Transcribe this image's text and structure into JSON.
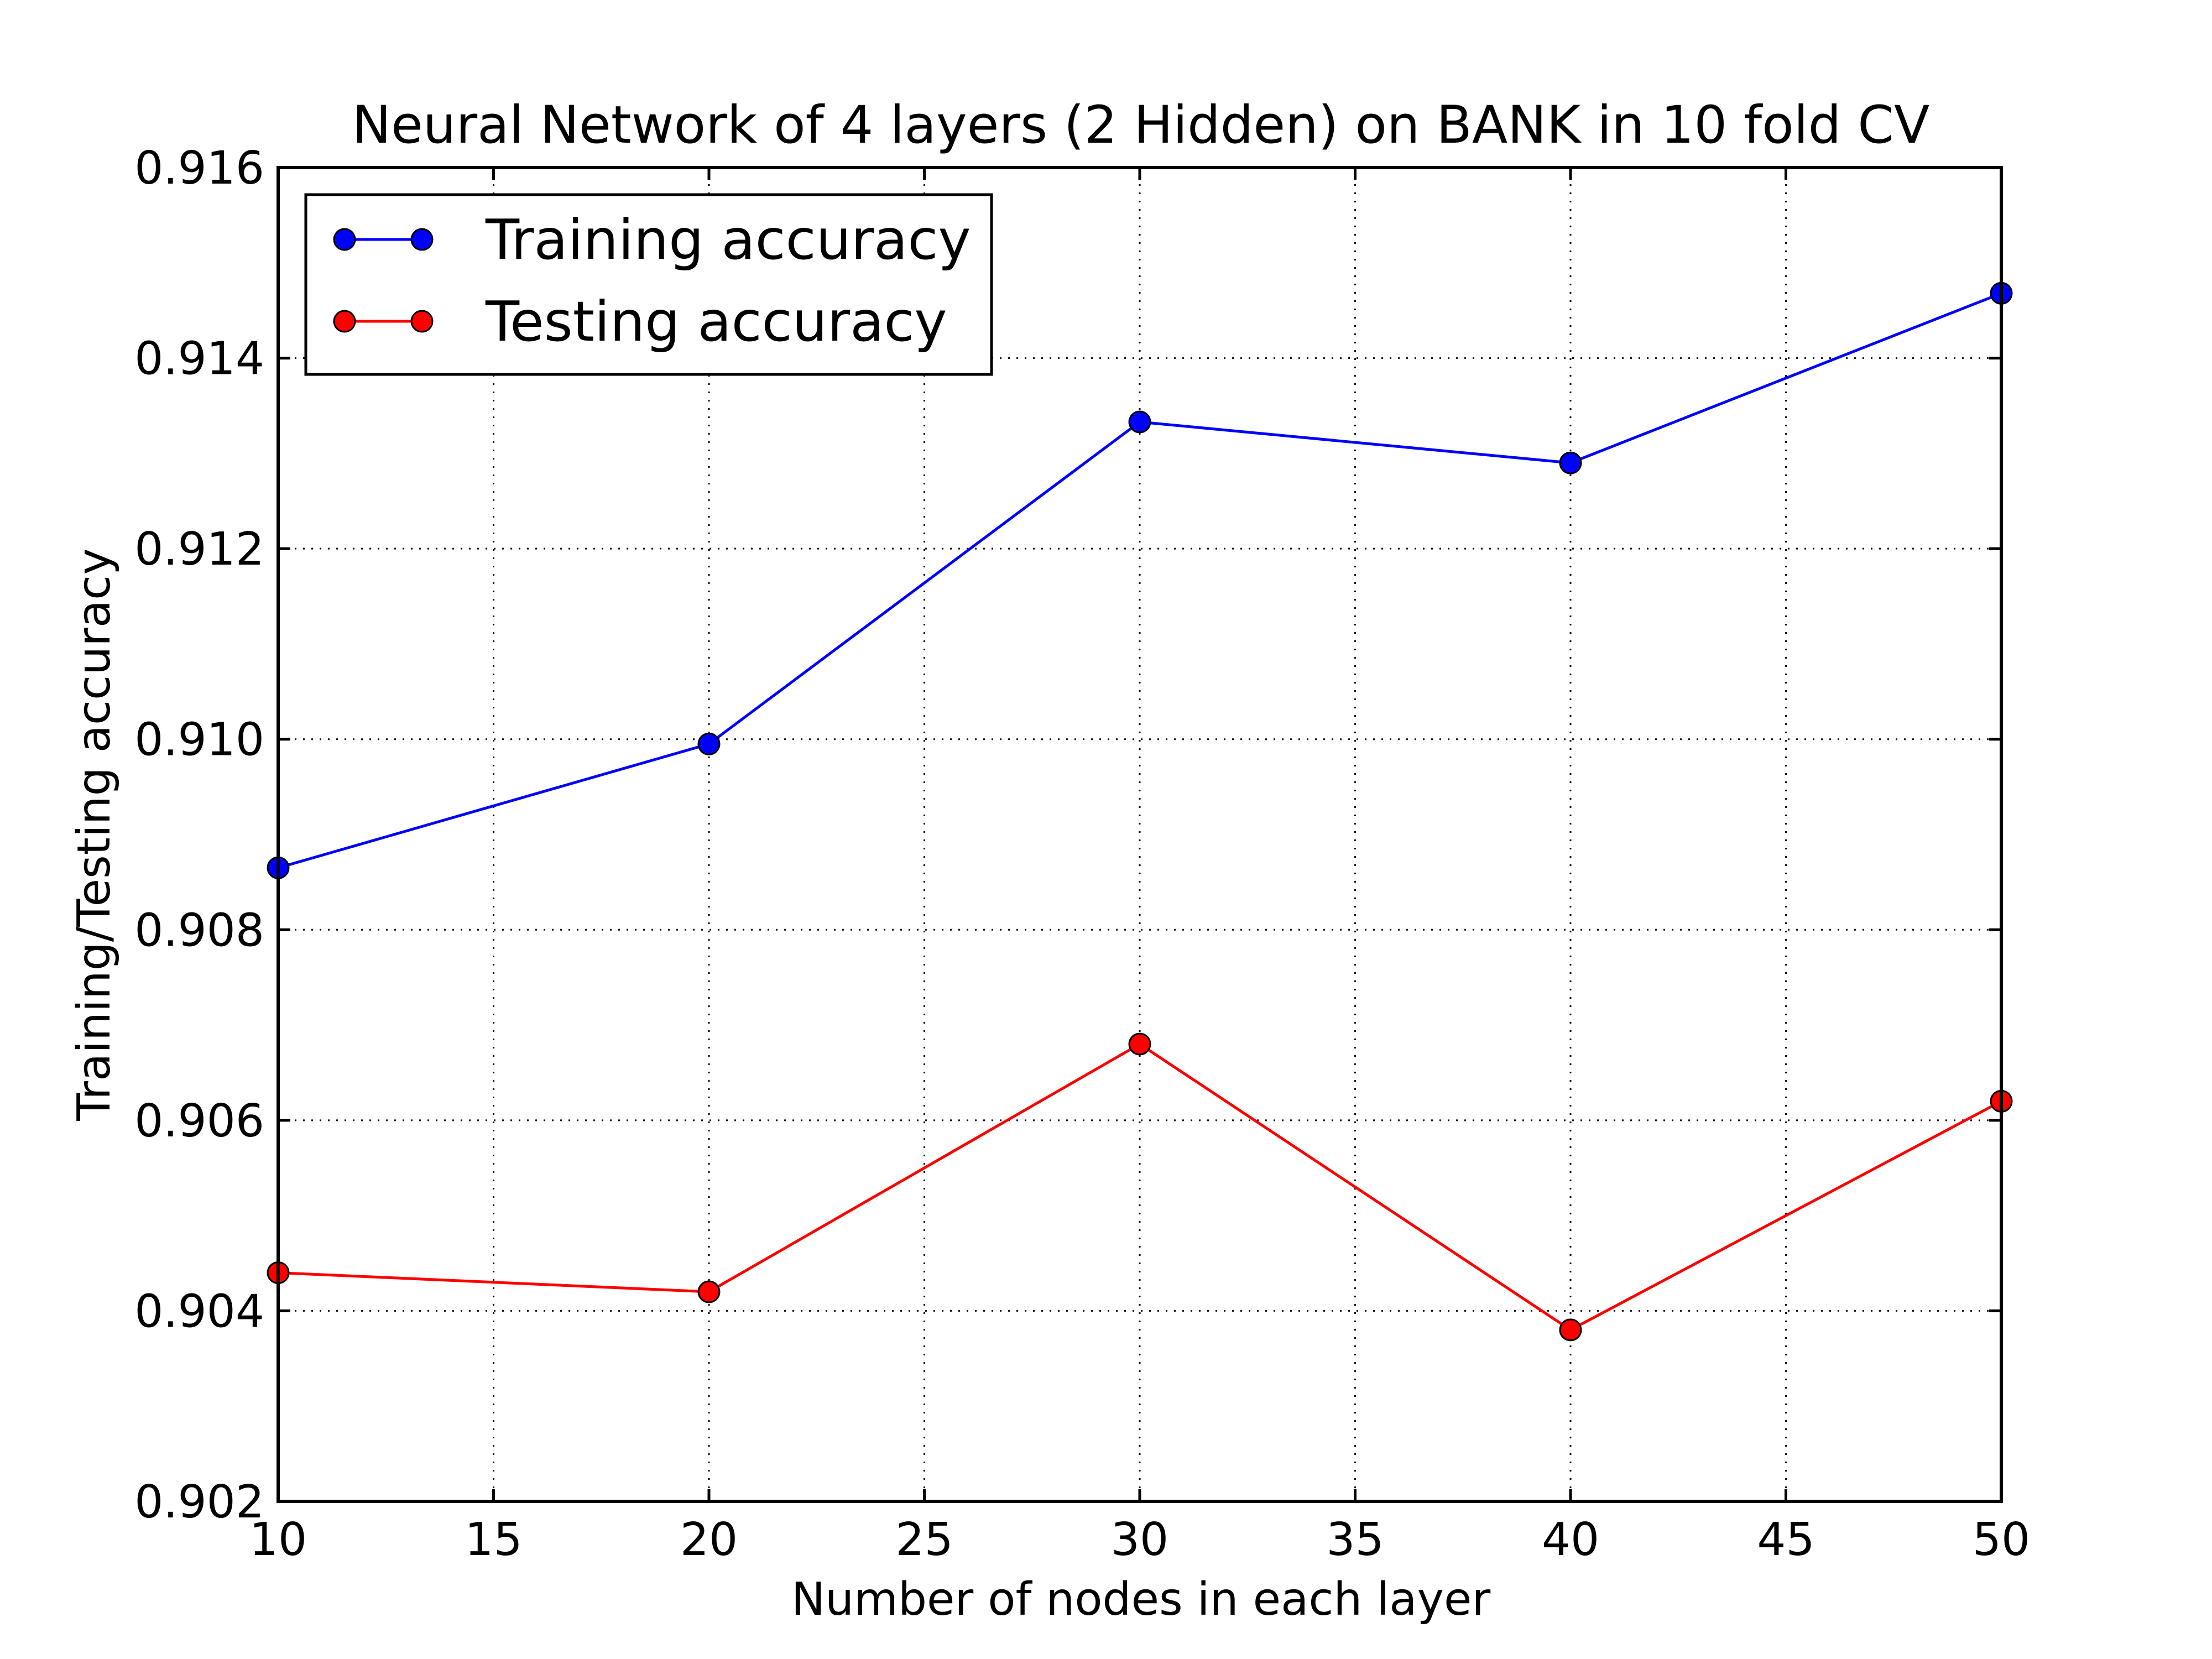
{
  "chart_data": {
    "type": "line",
    "title": "Neural Network of 4 layers (2 Hidden) on BANK in 10 fold CV",
    "xlabel": "Number of nodes in each layer",
    "ylabel": "Training/Testing accuracy",
    "x": [
      10,
      20,
      30,
      40,
      50
    ],
    "xlim": [
      10,
      50
    ],
    "ylim": [
      0.902,
      0.916
    ],
    "xticks": [
      10,
      15,
      20,
      25,
      30,
      35,
      40,
      45,
      50
    ],
    "yticks": [
      0.902,
      0.904,
      0.906,
      0.908,
      0.91,
      0.912,
      0.914,
      0.916
    ],
    "xtick_labels": [
      "10",
      "15",
      "20",
      "25",
      "30",
      "35",
      "40",
      "45",
      "50"
    ],
    "ytick_labels": [
      "0.902",
      "0.904",
      "0.906",
      "0.908",
      "0.910",
      "0.912",
      "0.914",
      "0.916"
    ],
    "grid": true,
    "legend_position": "top-left",
    "series": [
      {
        "name": "Training accuracy",
        "color": "#0000ff",
        "marker": "circle",
        "values": [
          0.90865,
          0.90995,
          0.91333,
          0.9129,
          0.91468
        ]
      },
      {
        "name": "Testing accuracy",
        "color": "#ff0000",
        "marker": "circle",
        "values": [
          0.9044,
          0.9042,
          0.9068,
          0.9038,
          0.9062
        ]
      }
    ]
  }
}
